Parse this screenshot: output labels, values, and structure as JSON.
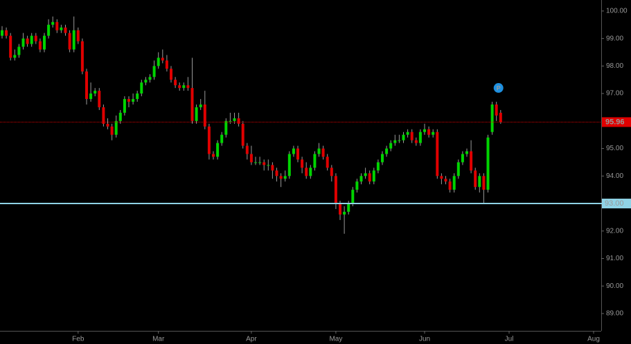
{
  "chart_data": {
    "type": "candlestick",
    "categories": [
      null,
      null,
      null,
      null,
      null,
      null,
      null,
      null,
      null,
      null,
      null,
      null,
      null,
      null,
      null,
      null,
      null,
      null,
      "Feb",
      null,
      null,
      null,
      null,
      null,
      null,
      null,
      null,
      null,
      null,
      null,
      null,
      null,
      null,
      null,
      null,
      null,
      null,
      "Mar",
      null,
      null,
      null,
      null,
      null,
      null,
      null,
      null,
      null,
      null,
      null,
      null,
      null,
      null,
      null,
      null,
      null,
      null,
      null,
      null,
      null,
      "Apr",
      null,
      null,
      null,
      null,
      null,
      null,
      null,
      null,
      null,
      null,
      null,
      null,
      null,
      null,
      null,
      null,
      null,
      null,
      null,
      "May",
      null,
      null,
      null,
      null,
      null,
      null,
      null,
      null,
      null,
      null,
      null,
      null,
      null,
      null,
      null,
      null,
      null,
      null,
      null,
      null,
      "Jun",
      null,
      null,
      null,
      null,
      null,
      null,
      null,
      null,
      null,
      null,
      null,
      null,
      null,
      null,
      null,
      null,
      null,
      null,
      null,
      "Jul",
      null,
      null,
      null,
      null,
      null,
      null,
      null,
      null,
      null,
      null,
      null,
      null,
      null,
      null,
      null,
      null,
      null,
      null,
      null,
      "Aug"
    ],
    "open": [
      99.1,
      99.3,
      99.1,
      98.3,
      98.4,
      98.7,
      99.0,
      98.8,
      99.1,
      98.9,
      98.6,
      99.1,
      99.5,
      99.6,
      99.3,
      99.4,
      99.2,
      98.6,
      99.3,
      98.9,
      97.8,
      96.8,
      97.0,
      97.1,
      96.5,
      95.9,
      95.8,
      95.5,
      96.0,
      96.3,
      96.8,
      96.7,
      96.8,
      97.0,
      97.4,
      97.5,
      97.6,
      98.0,
      98.3,
      98.2,
      97.9,
      97.5,
      97.3,
      97.2,
      97.3,
      97.2,
      96.0,
      96.5,
      96.6,
      95.8,
      94.8,
      94.7,
      95.2,
      95.5,
      96.0,
      96.0,
      96.1,
      95.9,
      95.1,
      94.8,
      94.5,
      94.5,
      94.5,
      94.4,
      94.4,
      94.2,
      94.0,
      93.9,
      94.0,
      94.8,
      95.0,
      94.6,
      94.3,
      94.0,
      94.3,
      94.8,
      95.0,
      94.7,
      94.3,
      94.0,
      93.0,
      92.6,
      92.7,
      93.0,
      93.5,
      93.8,
      94.0,
      94.1,
      93.8,
      94.2,
      94.5,
      94.8,
      95.0,
      95.2,
      95.3,
      95.3,
      95.5,
      95.6,
      95.3,
      95.2,
      95.6,
      95.7,
      95.5,
      95.6,
      94.0,
      93.9,
      93.8,
      93.5,
      94.0,
      94.5,
      94.8,
      94.9,
      94.2,
      93.6,
      94.0,
      93.5,
      95.6,
      96.6,
      96.3,
      null,
      null,
      null,
      null,
      null,
      null,
      null,
      null,
      null,
      null,
      null,
      null,
      null,
      null,
      null,
      null,
      null,
      null,
      null,
      null,
      null,
      null
    ],
    "high": [
      99.45,
      99.4,
      99.2,
      98.6,
      98.8,
      99.2,
      99.1,
      99.2,
      99.2,
      99.0,
      99.2,
      99.7,
      99.8,
      99.7,
      99.5,
      99.5,
      99.3,
      99.8,
      99.4,
      99.0,
      97.9,
      97.4,
      97.2,
      97.2,
      96.6,
      96.1,
      95.9,
      96.2,
      96.4,
      96.9,
      96.9,
      97.0,
      97.1,
      97.5,
      97.6,
      97.7,
      98.2,
      98.5,
      98.6,
      98.4,
      98.0,
      97.6,
      97.4,
      97.4,
      97.6,
      98.3,
      96.6,
      96.8,
      97.1,
      95.9,
      94.9,
      95.3,
      95.6,
      96.1,
      96.3,
      96.3,
      96.3,
      96.0,
      95.2,
      95.1,
      94.7,
      94.7,
      94.6,
      94.6,
      94.5,
      94.3,
      94.1,
      94.2,
      94.9,
      95.1,
      95.1,
      94.7,
      94.5,
      94.4,
      94.9,
      95.2,
      95.1,
      94.8,
      94.4,
      94.1,
      93.1,
      92.9,
      93.1,
      93.6,
      93.9,
      94.1,
      94.3,
      94.2,
      94.3,
      94.6,
      94.9,
      95.1,
      95.3,
      95.5,
      95.5,
      95.6,
      95.7,
      95.7,
      95.4,
      95.7,
      95.9,
      95.8,
      95.7,
      95.7,
      94.1,
      94.0,
      93.9,
      94.1,
      94.6,
      94.9,
      95.0,
      95.3,
      94.3,
      94.1,
      94.1,
      95.5,
      96.7,
      96.7,
      96.4,
      null,
      null,
      null,
      null,
      null,
      null,
      null,
      null,
      null,
      null,
      null,
      null,
      null,
      null,
      null,
      null,
      null,
      null,
      null,
      null,
      null,
      null
    ],
    "low": [
      99.0,
      99.0,
      98.2,
      98.2,
      98.3,
      98.6,
      98.7,
      98.7,
      98.8,
      98.5,
      98.5,
      99.0,
      99.4,
      99.2,
      99.2,
      99.1,
      98.5,
      98.5,
      98.8,
      97.7,
      96.6,
      96.7,
      96.9,
      96.4,
      95.8,
      95.7,
      95.3,
      95.4,
      95.9,
      96.2,
      96.5,
      96.6,
      96.7,
      96.9,
      97.3,
      97.4,
      97.5,
      97.9,
      98.1,
      97.8,
      97.4,
      97.2,
      97.1,
      97.1,
      97.1,
      95.9,
      95.9,
      96.4,
      95.7,
      94.6,
      94.6,
      94.6,
      95.1,
      95.4,
      95.9,
      95.9,
      95.8,
      95.0,
      94.6,
      94.4,
      94.4,
      94.4,
      94.2,
      94.2,
      93.9,
      93.8,
      93.6,
      93.8,
      93.9,
      94.7,
      94.5,
      94.1,
      93.9,
      93.9,
      94.2,
      94.7,
      94.6,
      94.2,
      93.8,
      92.8,
      92.4,
      91.9,
      92.6,
      92.9,
      93.4,
      93.7,
      93.9,
      93.7,
      93.7,
      94.1,
      94.4,
      94.7,
      94.9,
      95.1,
      95.2,
      95.2,
      95.4,
      95.2,
      95.1,
      95.1,
      95.5,
      95.4,
      95.4,
      93.9,
      93.7,
      93.7,
      93.4,
      93.4,
      93.9,
      94.4,
      94.7,
      94.1,
      93.5,
      93.4,
      93.0,
      93.4,
      95.5,
      96.0,
      95.9,
      null,
      null,
      null,
      null,
      null,
      null,
      null,
      null,
      null,
      null,
      null,
      null,
      null,
      null,
      null,
      null,
      null,
      null,
      null,
      null,
      null,
      null
    ],
    "close": [
      99.3,
      99.1,
      98.3,
      98.4,
      98.7,
      99.0,
      98.8,
      99.1,
      98.9,
      98.6,
      99.1,
      99.5,
      99.6,
      99.3,
      99.4,
      99.2,
      98.6,
      99.3,
      98.9,
      97.8,
      96.8,
      97.0,
      97.1,
      96.5,
      95.9,
      95.8,
      95.5,
      96.0,
      96.3,
      96.8,
      96.7,
      96.8,
      97.0,
      97.4,
      97.5,
      97.6,
      98.0,
      98.3,
      98.2,
      97.9,
      97.5,
      97.3,
      97.2,
      97.3,
      97.2,
      96.0,
      96.5,
      96.6,
      95.8,
      94.8,
      94.7,
      95.2,
      95.5,
      96.0,
      96.0,
      96.1,
      95.9,
      95.1,
      94.8,
      94.5,
      94.5,
      94.5,
      94.4,
      94.4,
      94.2,
      94.0,
      93.9,
      94.0,
      94.8,
      95.0,
      94.6,
      94.3,
      94.0,
      94.3,
      94.8,
      95.0,
      94.7,
      94.3,
      94.0,
      93.0,
      92.6,
      92.7,
      93.0,
      93.5,
      93.8,
      94.0,
      94.1,
      93.8,
      94.2,
      94.5,
      94.8,
      95.0,
      95.2,
      95.3,
      95.3,
      95.5,
      95.6,
      95.3,
      95.2,
      95.6,
      95.7,
      95.5,
      95.6,
      94.0,
      93.9,
      93.8,
      93.5,
      94.0,
      94.5,
      94.8,
      94.9,
      94.2,
      93.6,
      94.0,
      93.5,
      95.4,
      96.6,
      96.2,
      95.96,
      null,
      null,
      null,
      null,
      null,
      null,
      null,
      null,
      null,
      null,
      null,
      null,
      null,
      null,
      null,
      null,
      null,
      null,
      null,
      null,
      null,
      null
    ],
    "up_color": "#00d400",
    "down_color": "#e00000",
    "ylim": [
      88.37,
      100.4
    ],
    "yticks": [
      {
        "value": 89,
        "label": "89.00"
      },
      {
        "value": 90,
        "label": "90.00"
      },
      {
        "value": 91,
        "label": "91.00"
      },
      {
        "value": 92,
        "label": "92.00"
      },
      {
        "value": 93,
        "label": "93.00"
      },
      {
        "value": 94,
        "label": "94.00"
      },
      {
        "value": 95,
        "label": "95.00"
      },
      {
        "value": 96,
        "label": "96.00"
      },
      {
        "value": 97,
        "label": "97.00"
      },
      {
        "value": 98,
        "label": "98.00"
      },
      {
        "value": 99,
        "label": "99.00"
      },
      {
        "value": 100,
        "label": "100.00"
      }
    ],
    "last_price_color": "#e00000",
    "level": {
      "value": 93,
      "label": "93.00",
      "color": "#8fd3e6"
    },
    "marker": {
      "label": "P",
      "color": "#1e90e0"
    }
  }
}
